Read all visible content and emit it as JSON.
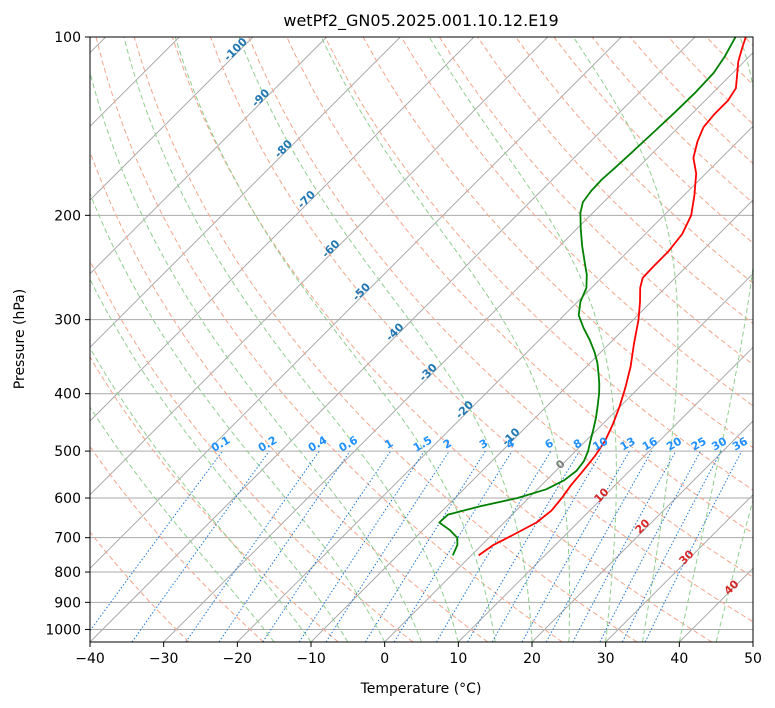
{
  "chart_data": {
    "type": "line",
    "title": "wetPf2_GN05.2025.001.10.12.E19",
    "xlabel": "Temperature (°C)",
    "ylabel": "Pressure (hPa)",
    "xlim": [
      -40,
      50
    ],
    "ylim": [
      1050,
      100
    ],
    "y_scale": "log",
    "grid": true,
    "x_ticks": [
      -40,
      -30,
      -20,
      -10,
      0,
      10,
      20,
      30,
      40,
      50
    ],
    "y_ticks": [
      100,
      200,
      300,
      400,
      500,
      600,
      700,
      800,
      900,
      1000
    ],
    "series": [
      {
        "color": "#ff0000",
        "points": [
          {
            "p": 750,
            "t": 1.0
          },
          {
            "p": 720,
            "t": 1.6
          },
          {
            "p": 690,
            "t": 3.0
          },
          {
            "p": 660,
            "t": 4.4
          },
          {
            "p": 630,
            "t": 4.8
          },
          {
            "p": 600,
            "t": 4.5
          },
          {
            "p": 570,
            "t": 4.0
          },
          {
            "p": 540,
            "t": 3.7
          },
          {
            "p": 510,
            "t": 3.3
          },
          {
            "p": 480,
            "t": 2.6
          },
          {
            "p": 450,
            "t": 1.4
          },
          {
            "p": 420,
            "t": -0.1
          },
          {
            "p": 390,
            "t": -1.9
          },
          {
            "p": 360,
            "t": -4.0
          },
          {
            "p": 330,
            "t": -6.6
          },
          {
            "p": 300,
            "t": -9.3
          },
          {
            "p": 280,
            "t": -11.5
          },
          {
            "p": 265,
            "t": -13.4
          },
          {
            "p": 255,
            "t": -14.4
          },
          {
            "p": 245,
            "t": -14.5
          },
          {
            "p": 230,
            "t": -14.5
          },
          {
            "p": 215,
            "t": -15.0
          },
          {
            "p": 200,
            "t": -16.3
          },
          {
            "p": 185,
            "t": -18.6
          },
          {
            "p": 170,
            "t": -21.3
          },
          {
            "p": 160,
            "t": -23.8
          },
          {
            "p": 150,
            "t": -25.5
          },
          {
            "p": 142,
            "t": -26.6
          },
          {
            "p": 135,
            "t": -26.9
          },
          {
            "p": 128,
            "t": -26.9
          },
          {
            "p": 122,
            "t": -27.5
          },
          {
            "p": 116,
            "t": -29.1
          },
          {
            "p": 110,
            "t": -30.8
          },
          {
            "p": 104,
            "t": -32.2
          },
          {
            "p": 100,
            "t": -33.1
          }
        ]
      },
      {
        "color": "#008000",
        "points": [
          {
            "p": 750,
            "t": -2.5
          },
          {
            "p": 720,
            "t": -3.3
          },
          {
            "p": 700,
            "t": -4.3
          },
          {
            "p": 680,
            "t": -6.3
          },
          {
            "p": 660,
            "t": -8.8
          },
          {
            "p": 640,
            "t": -8.7
          },
          {
            "p": 620,
            "t": -5.5
          },
          {
            "p": 600,
            "t": -1.5
          },
          {
            "p": 580,
            "t": 1.2
          },
          {
            "p": 560,
            "t": 2.4
          },
          {
            "p": 540,
            "t": 2.8
          },
          {
            "p": 520,
            "t": 2.5
          },
          {
            "p": 500,
            "t": 1.7
          },
          {
            "p": 480,
            "t": 0.6
          },
          {
            "p": 460,
            "t": -0.5
          },
          {
            "p": 440,
            "t": -1.7
          },
          {
            "p": 420,
            "t": -3.1
          },
          {
            "p": 400,
            "t": -4.6
          },
          {
            "p": 385,
            "t": -5.9
          },
          {
            "p": 370,
            "t": -7.4
          },
          {
            "p": 355,
            "t": -9.0
          },
          {
            "p": 340,
            "t": -10.9
          },
          {
            "p": 325,
            "t": -13.1
          },
          {
            "p": 310,
            "t": -15.6
          },
          {
            "p": 295,
            "t": -18.0
          },
          {
            "p": 280,
            "t": -19.6
          },
          {
            "p": 265,
            "t": -20.7
          },
          {
            "p": 252,
            "t": -22.4
          },
          {
            "p": 240,
            "t": -24.4
          },
          {
            "p": 225,
            "t": -27.0
          },
          {
            "p": 210,
            "t": -29.6
          },
          {
            "p": 198,
            "t": -31.7
          },
          {
            "p": 190,
            "t": -32.8
          },
          {
            "p": 182,
            "t": -33.2
          },
          {
            "p": 174,
            "t": -33.3
          },
          {
            "p": 166,
            "t": -33.1
          },
          {
            "p": 156,
            "t": -32.9
          },
          {
            "p": 145,
            "t": -32.7
          },
          {
            "p": 134,
            "t": -32.5
          },
          {
            "p": 124,
            "t": -32.4
          },
          {
            "p": 115,
            "t": -32.6
          },
          {
            "p": 108,
            "t": -33.3
          },
          {
            "p": 100,
            "t": -34.5
          }
        ]
      }
    ],
    "isotherm_labels": [
      {
        "text": "-100",
        "t": -100,
        "p": 106
      },
      {
        "text": "-90",
        "t": -90,
        "p": 128
      },
      {
        "text": "-80",
        "t": -80,
        "p": 156
      },
      {
        "text": "-70",
        "t": -70,
        "p": 190
      },
      {
        "text": "-60",
        "t": -60,
        "p": 230
      },
      {
        "text": "-50",
        "t": -50,
        "p": 272
      },
      {
        "text": "-40",
        "t": -40,
        "p": 318
      },
      {
        "text": "-30",
        "t": -30,
        "p": 372
      },
      {
        "text": "-20",
        "t": -20,
        "p": 430
      },
      {
        "text": "-10",
        "t": -10,
        "p": 478
      }
    ],
    "mixing_ratio_labels": [
      "0.1",
      "0.2",
      "0.4",
      "0.6",
      "1",
      "1.5",
      "2",
      "3",
      "4",
      "6",
      "8",
      "10",
      "13",
      "16",
      "20",
      "25",
      "30",
      "36"
    ],
    "moist_adiabat_labels": [
      "0",
      "10",
      "20",
      "30",
      "40"
    ],
    "colors": {
      "isotherm": "#aaaaaa",
      "isotherm_label": "#1f77b4",
      "dry_adiabat": "#f4a58a",
      "moist_adiabat": "#8fcf8f",
      "mixing_ratio": "#1f77d4",
      "mixing_ratio_label": "#1e90ff",
      "moist_label_zero": "#808080",
      "moist_label": "#d62728"
    }
  }
}
